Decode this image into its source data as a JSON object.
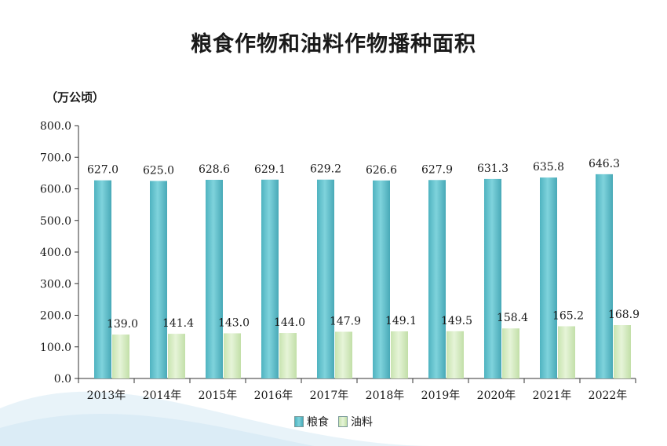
{
  "chart_data": {
    "type": "bar",
    "title": "粮食作物和油料作物播种面积",
    "unit_label": "（万公顷）",
    "categories": [
      "2013年",
      "2014年",
      "2015年",
      "2016年",
      "2017年",
      "2018年",
      "2019年",
      "2020年",
      "2021年",
      "2022年"
    ],
    "series": [
      {
        "name": "粮食",
        "color": "#5bc0cc",
        "values": [
          627.0,
          625.0,
          628.6,
          629.1,
          629.2,
          626.6,
          627.9,
          631.3,
          635.8,
          646.3
        ],
        "labels": [
          "627.0",
          "625.0",
          "628.6",
          "629.1",
          "629.2",
          "626.6",
          "627.9",
          "631.3",
          "635.8",
          "646.3"
        ]
      },
      {
        "name": "油料",
        "color": "#d2ebc0",
        "values": [
          139.0,
          141.4,
          143.0,
          144.0,
          147.9,
          149.1,
          149.5,
          158.4,
          165.2,
          168.9
        ],
        "labels": [
          "139.0",
          "141.4",
          "143.0",
          "144.0",
          "147.9",
          "149.1",
          "149.5",
          "158.4",
          "165.2",
          "168.9"
        ]
      }
    ],
    "ylim": [
      0,
      800
    ],
    "yticks": [
      "0.0",
      "100.0",
      "200.0",
      "300.0",
      "400.0",
      "500.0",
      "600.0",
      "700.0",
      "800.0"
    ],
    "grid": false,
    "legend": "bottom-center"
  }
}
